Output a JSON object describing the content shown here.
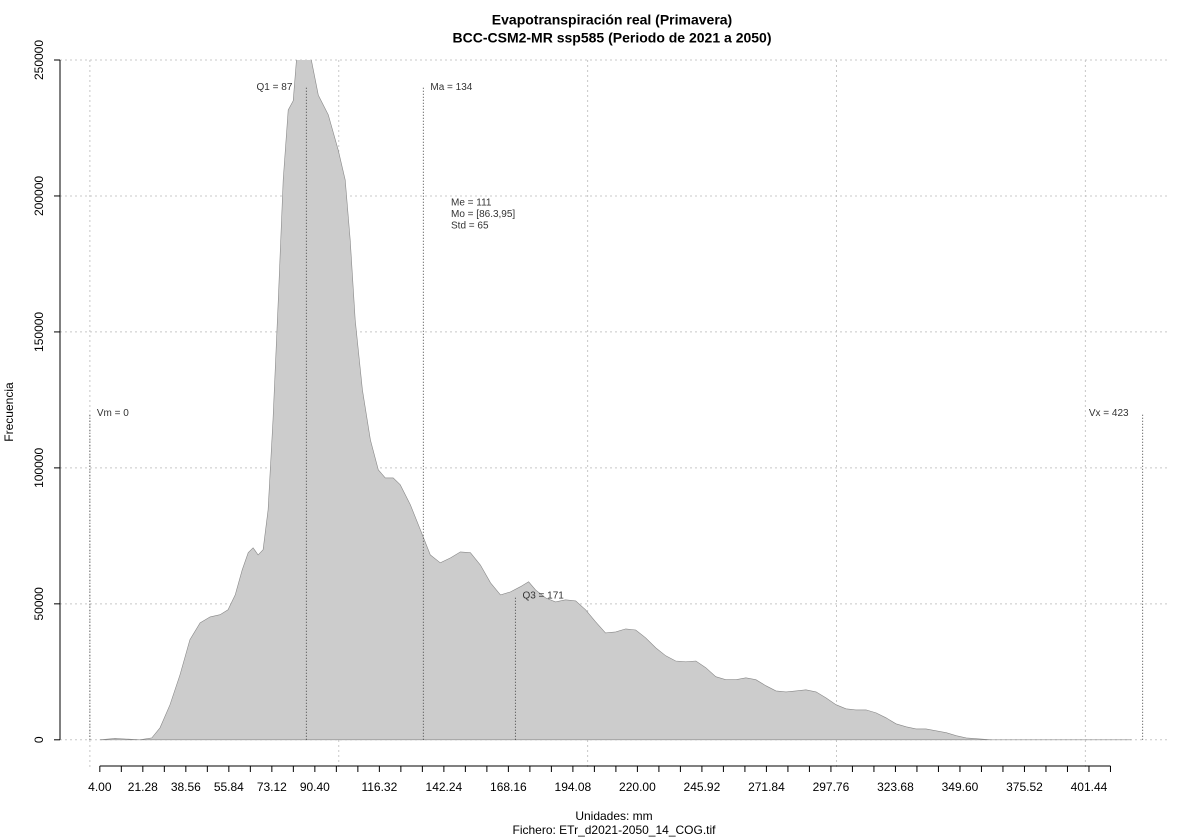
{
  "chart_data": {
    "type": "area",
    "title": "Evapotranspiración real (Primavera)",
    "subtitle": "BCC-CSM2-MR ssp585 (Periodo de 2021 a 2050)",
    "x_label": "Unidades: mm",
    "note": "Fichero: ETr_d2021-2050_14_COG.tif",
    "y_label": "Frecuencia",
    "color": "#cccccc",
    "line_color": "#888888",
    "grid": true,
    "xlim": [
      -12,
      434
    ],
    "ylim": [
      -10000,
      250000
    ],
    "xgrid": [
      0,
      100,
      200,
      300,
      400
    ],
    "yticks": [
      0,
      50000,
      100000,
      150000,
      200000,
      250000
    ],
    "xticks": [
      {
        "value": 4,
        "label": "4.00"
      },
      {
        "value": 12.64,
        "label": null
      },
      {
        "value": 21.28,
        "label": "21.28"
      },
      {
        "value": 29.92,
        "label": null
      },
      {
        "value": 38.56,
        "label": "38.56"
      },
      {
        "value": 47.2,
        "label": null
      },
      {
        "value": 55.84,
        "label": "55.84"
      },
      {
        "value": 64.48,
        "label": null
      },
      {
        "value": 73.12,
        "label": "73.12"
      },
      {
        "value": 81.76,
        "label": null
      },
      {
        "value": 90.4,
        "label": "90.40"
      },
      {
        "value": 99.04,
        "label": null
      },
      {
        "value": 107.68,
        "label": null
      },
      {
        "value": 116.32,
        "label": "116.32"
      },
      {
        "value": 124.96,
        "label": null
      },
      {
        "value": 133.6,
        "label": null
      },
      {
        "value": 142.24,
        "label": "142.24"
      },
      {
        "value": 150.88,
        "label": null
      },
      {
        "value": 159.52,
        "label": null
      },
      {
        "value": 168.16,
        "label": "168.16"
      },
      {
        "value": 176.8,
        "label": null
      },
      {
        "value": 185.44,
        "label": null
      },
      {
        "value": 194.08,
        "label": "194.08"
      },
      {
        "value": 202.72,
        "label": null
      },
      {
        "value": 211.36,
        "label": null
      },
      {
        "value": 220,
        "label": "220.00"
      },
      {
        "value": 228.64,
        "label": null
      },
      {
        "value": 237.28,
        "label": null
      },
      {
        "value": 245.92,
        "label": "245.92"
      },
      {
        "value": 254.56,
        "label": null
      },
      {
        "value": 263.2,
        "label": null
      },
      {
        "value": 271.84,
        "label": "271.84"
      },
      {
        "value": 280.48,
        "label": null
      },
      {
        "value": 289.12,
        "label": null
      },
      {
        "value": 297.76,
        "label": "297.76"
      },
      {
        "value": 306.4,
        "label": null
      },
      {
        "value": 315.04,
        "label": null
      },
      {
        "value": 323.68,
        "label": "323.68"
      },
      {
        "value": 332.32,
        "label": null
      },
      {
        "value": 340.96,
        "label": null
      },
      {
        "value": 349.6,
        "label": "349.60"
      },
      {
        "value": 358.24,
        "label": null
      },
      {
        "value": 366.88,
        "label": null
      },
      {
        "value": 375.52,
        "label": "375.52"
      },
      {
        "value": 384.16,
        "label": null
      },
      {
        "value": 392.8,
        "label": null
      },
      {
        "value": 401.44,
        "label": "401.44"
      },
      {
        "value": 410.08,
        "label": null
      }
    ],
    "x": [
      4.0,
      10.1,
      20.1,
      24.9,
      28.2,
      32.2,
      36.2,
      40.2,
      44.3,
      48.3,
      52.3,
      55.5,
      58.4,
      61.2,
      63.6,
      65.6,
      67.6,
      69.6,
      71.6,
      73.6,
      75.7,
      77.7,
      79.7,
      81.7,
      83.7,
      85.7,
      87.7,
      91.8,
      95.8,
      99.8,
      102.6,
      104.6,
      106.6,
      109.5,
      112.7,
      115.9,
      118.7,
      121.9,
      124.7,
      128.8,
      132.8,
      136.8,
      140.8,
      144.9,
      148.9,
      152.9,
      156.9,
      161.0,
      165.0,
      169.0,
      173.0,
      176.3,
      179.1,
      183.1,
      187.1,
      191.1,
      195.2,
      199.2,
      203.2,
      207.2,
      211.3,
      215.3,
      219.3,
      223.3,
      227.4,
      231.4,
      235.4,
      239.4,
      243.5,
      247.5,
      251.5,
      255.5,
      259.6,
      263.6,
      267.6,
      271.6,
      275.7,
      279.7,
      283.7,
      287.7,
      291.8,
      295.8,
      299.8,
      303.8,
      307.8,
      311.9,
      315.9,
      319.9,
      323.9,
      328.0,
      332.0,
      336.0,
      340.0,
      344.1,
      348.1,
      352.1,
      356.1,
      362.2,
      370.2,
      418.5
    ],
    "values": [
      0,
      500,
      0,
      700,
      4400,
      12900,
      23900,
      36800,
      43000,
      45200,
      46000,
      47800,
      53300,
      62500,
      68800,
      70600,
      68000,
      69900,
      84600,
      117600,
      161800,
      205900,
      231600,
      235000,
      258000,
      262000,
      256000,
      237100,
      229800,
      216900,
      205900,
      183800,
      154400,
      128700,
      110300,
      99300,
      96300,
      96300,
      93800,
      86400,
      77200,
      68000,
      65100,
      66900,
      69100,
      68800,
      64300,
      57700,
      53300,
      54400,
      56300,
      58100,
      55100,
      52200,
      50700,
      51500,
      51100,
      47800,
      43400,
      39300,
      39700,
      40800,
      40400,
      37500,
      33800,
      30900,
      29000,
      28700,
      29000,
      26500,
      23200,
      22100,
      22100,
      22800,
      22100,
      19900,
      18000,
      17600,
      18000,
      18400,
      17600,
      15400,
      12900,
      11400,
      11000,
      11000,
      9900,
      8100,
      5900,
      4800,
      4000,
      4000,
      3300,
      2600,
      1500,
      700,
      400,
      0,
      0,
      0
    ],
    "annotations": [
      {
        "label": "Vm = 0",
        "x": 0,
        "height": 120000,
        "side": "right"
      },
      {
        "label": "Q1 = 87",
        "x": 87,
        "height": 240000,
        "side": "left"
      },
      {
        "label": "Ma = 134",
        "x": 134,
        "height": 240000,
        "side": "right"
      },
      {
        "label": "Q3 = 171",
        "x": 171,
        "height": 53000,
        "side": "right"
      },
      {
        "label": "Vx = 423",
        "x": 423,
        "height": 120000,
        "side": "left"
      }
    ],
    "stats": [
      "Me = 111",
      "Mo = [86.3,95]",
      "Std = 65"
    ]
  }
}
